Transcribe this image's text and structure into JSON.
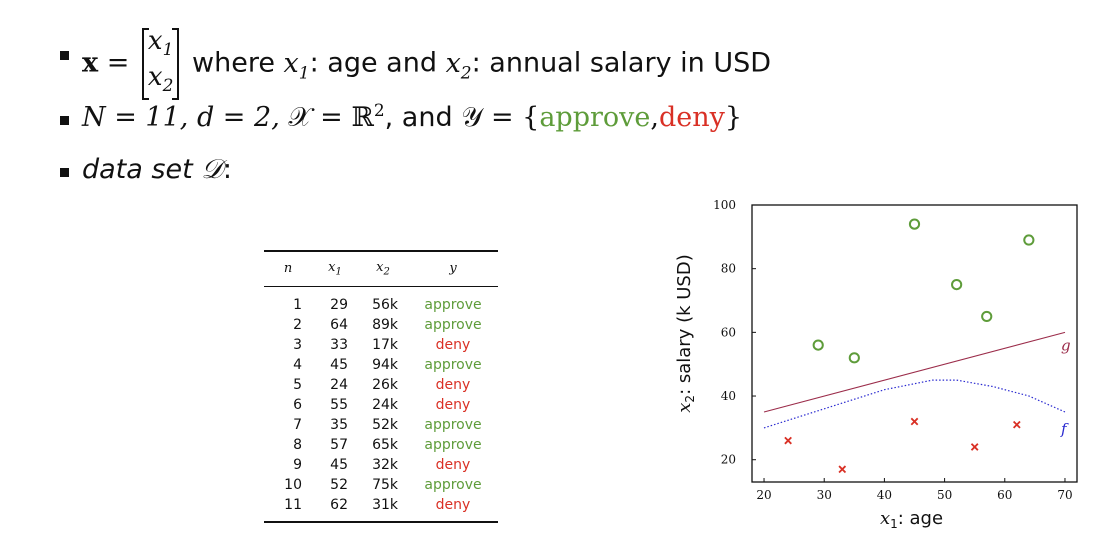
{
  "bullets": {
    "line1": {
      "bold_x": "x",
      "equals": "=",
      "matrix_top": "x",
      "matrix_top_sub": "1",
      "matrix_bottom": "x",
      "matrix_bottom_sub": "2",
      "where": "where",
      "var1": "x",
      "var1_sub": "1",
      "age_text": ": age and",
      "var2": "x",
      "var2_sub": "2",
      "salary_text": ": annual salary in USD"
    },
    "line2": {
      "n_part": "N = 11, ",
      "d_part": "d = 2, ",
      "X_part": "𝒳 = ℝ",
      "X_sup": "2",
      "and": ", and ",
      "Y_part": "𝒴 = {",
      "approve": "approve",
      "comma": ",",
      "deny": "deny",
      "close": "}"
    },
    "line3": {
      "label": "data set",
      "D": "𝒟",
      "colon": ":"
    }
  },
  "table": {
    "headers": [
      "n",
      "x1",
      "x2",
      "y"
    ],
    "rows": [
      [
        "1",
        "29",
        "56k",
        "approve"
      ],
      [
        "2",
        "64",
        "89k",
        "approve"
      ],
      [
        "3",
        "33",
        "17k",
        "deny"
      ],
      [
        "4",
        "45",
        "94k",
        "approve"
      ],
      [
        "5",
        "24",
        "26k",
        "deny"
      ],
      [
        "6",
        "55",
        "24k",
        "deny"
      ],
      [
        "7",
        "35",
        "52k",
        "approve"
      ],
      [
        "8",
        "57",
        "65k",
        "approve"
      ],
      [
        "9",
        "45",
        "32k",
        "deny"
      ],
      [
        "10",
        "52",
        "75k",
        "approve"
      ],
      [
        "11",
        "62",
        "31k",
        "deny"
      ]
    ]
  },
  "colors": {
    "approve": "#5e9c3a",
    "deny": "#d93025",
    "g_line": "#9b2c4a",
    "f_line": "#2a2ad0"
  },
  "chart_data": {
    "type": "scatter",
    "xlabel_var": "x",
    "xlabel_sub": "1",
    "xlabel_text": ": age",
    "ylabel_var": "x",
    "ylabel_sub": "2",
    "ylabel_text": ": salary (k USD)",
    "xlim": [
      18,
      72
    ],
    "ylim": [
      13,
      100
    ],
    "x_ticks": [
      20,
      30,
      40,
      50,
      60,
      70
    ],
    "y_ticks": [
      20,
      40,
      60,
      80,
      100
    ],
    "grid": false,
    "series": [
      {
        "marker": "circle",
        "color": "#5e9c3a",
        "points": [
          [
            29,
            56
          ],
          [
            64,
            89
          ],
          [
            45,
            94
          ],
          [
            35,
            52
          ],
          [
            57,
            65
          ],
          [
            52,
            75
          ]
        ]
      },
      {
        "marker": "cross",
        "color": "#d93025",
        "points": [
          [
            33,
            17
          ],
          [
            24,
            26
          ],
          [
            55,
            24
          ],
          [
            45,
            32
          ],
          [
            62,
            31
          ]
        ]
      }
    ],
    "lines": [
      {
        "name": "g",
        "style": "solid",
        "color": "#9b2c4a",
        "points": [
          [
            20,
            35
          ],
          [
            70,
            60
          ]
        ]
      },
      {
        "name": "f",
        "style": "dotted",
        "color": "#2a2ad0",
        "points": [
          [
            20,
            30
          ],
          [
            30,
            36
          ],
          [
            40,
            42
          ],
          [
            48,
            45
          ],
          [
            52,
            45
          ],
          [
            58,
            43
          ],
          [
            64,
            40
          ],
          [
            70,
            35
          ]
        ]
      }
    ]
  }
}
